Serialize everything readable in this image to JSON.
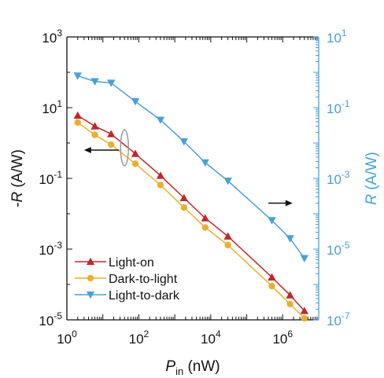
{
  "chart_data": {
    "type": "line",
    "x": [
      2,
      6,
      17,
      80,
      400,
      1800,
      7000,
      30000,
      500000,
      1600000,
      4000000
    ],
    "x_scale": "log",
    "xlim": [
      1,
      10000000
    ],
    "xlabel_main": "P",
    "xlabel_sub": "in",
    "xlabel_unit": "(nW)",
    "ylabel_left_italic": "-R",
    "ylabel_left_unit": " (A/W)",
    "ylabel_right_italic": "R",
    "ylabel_right_unit": " (A/W)",
    "y_left_scale": "log",
    "y_left_lim": [
      1e-05,
      1000
    ],
    "y_right_scale": "log",
    "y_right_lim": [
      1e-07,
      10
    ],
    "x_ticks": [
      {
        "value": 1,
        "base": "10",
        "exp": "0"
      },
      {
        "value": 100,
        "base": "10",
        "exp": "2"
      },
      {
        "value": 10000,
        "base": "10",
        "exp": "4"
      },
      {
        "value": 1000000,
        "base": "10",
        "exp": "6"
      }
    ],
    "y_left_ticks": [
      {
        "value": 1e-05,
        "base": "10",
        "exp": "-5"
      },
      {
        "value": 0.001,
        "base": "10",
        "exp": "-3"
      },
      {
        "value": 0.1,
        "base": "10",
        "exp": "-1"
      },
      {
        "value": 10,
        "base": "10",
        "exp": "1"
      },
      {
        "value": 1000,
        "base": "10",
        "exp": "3"
      }
    ],
    "y_right_ticks": [
      {
        "value": 1e-07,
        "base": "10",
        "exp": "-7"
      },
      {
        "value": 1e-05,
        "base": "10",
        "exp": "-5"
      },
      {
        "value": 0.001,
        "base": "10",
        "exp": "-3"
      },
      {
        "value": 0.1,
        "base": "10",
        "exp": "-1"
      },
      {
        "value": 10,
        "base": "10",
        "exp": "1"
      }
    ],
    "series": [
      {
        "name": "Light-on",
        "axis": "left",
        "marker": "triangle-up",
        "color": "#c0282b",
        "values": [
          6,
          3,
          1.8,
          0.5,
          0.12,
          0.028,
          0.0075,
          0.0023,
          0.00016,
          5e-05,
          1.8e-05
        ]
      },
      {
        "name": "Dark-to-light",
        "axis": "left",
        "marker": "circle",
        "color": "#e8b030",
        "values": [
          3.8,
          1.7,
          0.9,
          0.26,
          0.065,
          0.015,
          0.0041,
          0.0013,
          9e-05,
          2.8e-05,
          1.1e-05
        ]
      },
      {
        "name": "Light-to-dark",
        "axis": "right",
        "marker": "triangle-down",
        "color": "#4aa0d5",
        "values": [
          0.8,
          0.55,
          0.5,
          0.15,
          0.045,
          0.011,
          0.0028,
          0.00085,
          6.5e-05,
          2e-05,
          5.5e-06
        ]
      }
    ],
    "legend_position": "bottom-left",
    "annotations": [
      "ellipse around left-axis series with arrow pointing left",
      "arrow pointing right toward right axis"
    ],
    "colors": {
      "right_axis": "#4aa0d5",
      "left_axis": "#111111"
    }
  }
}
